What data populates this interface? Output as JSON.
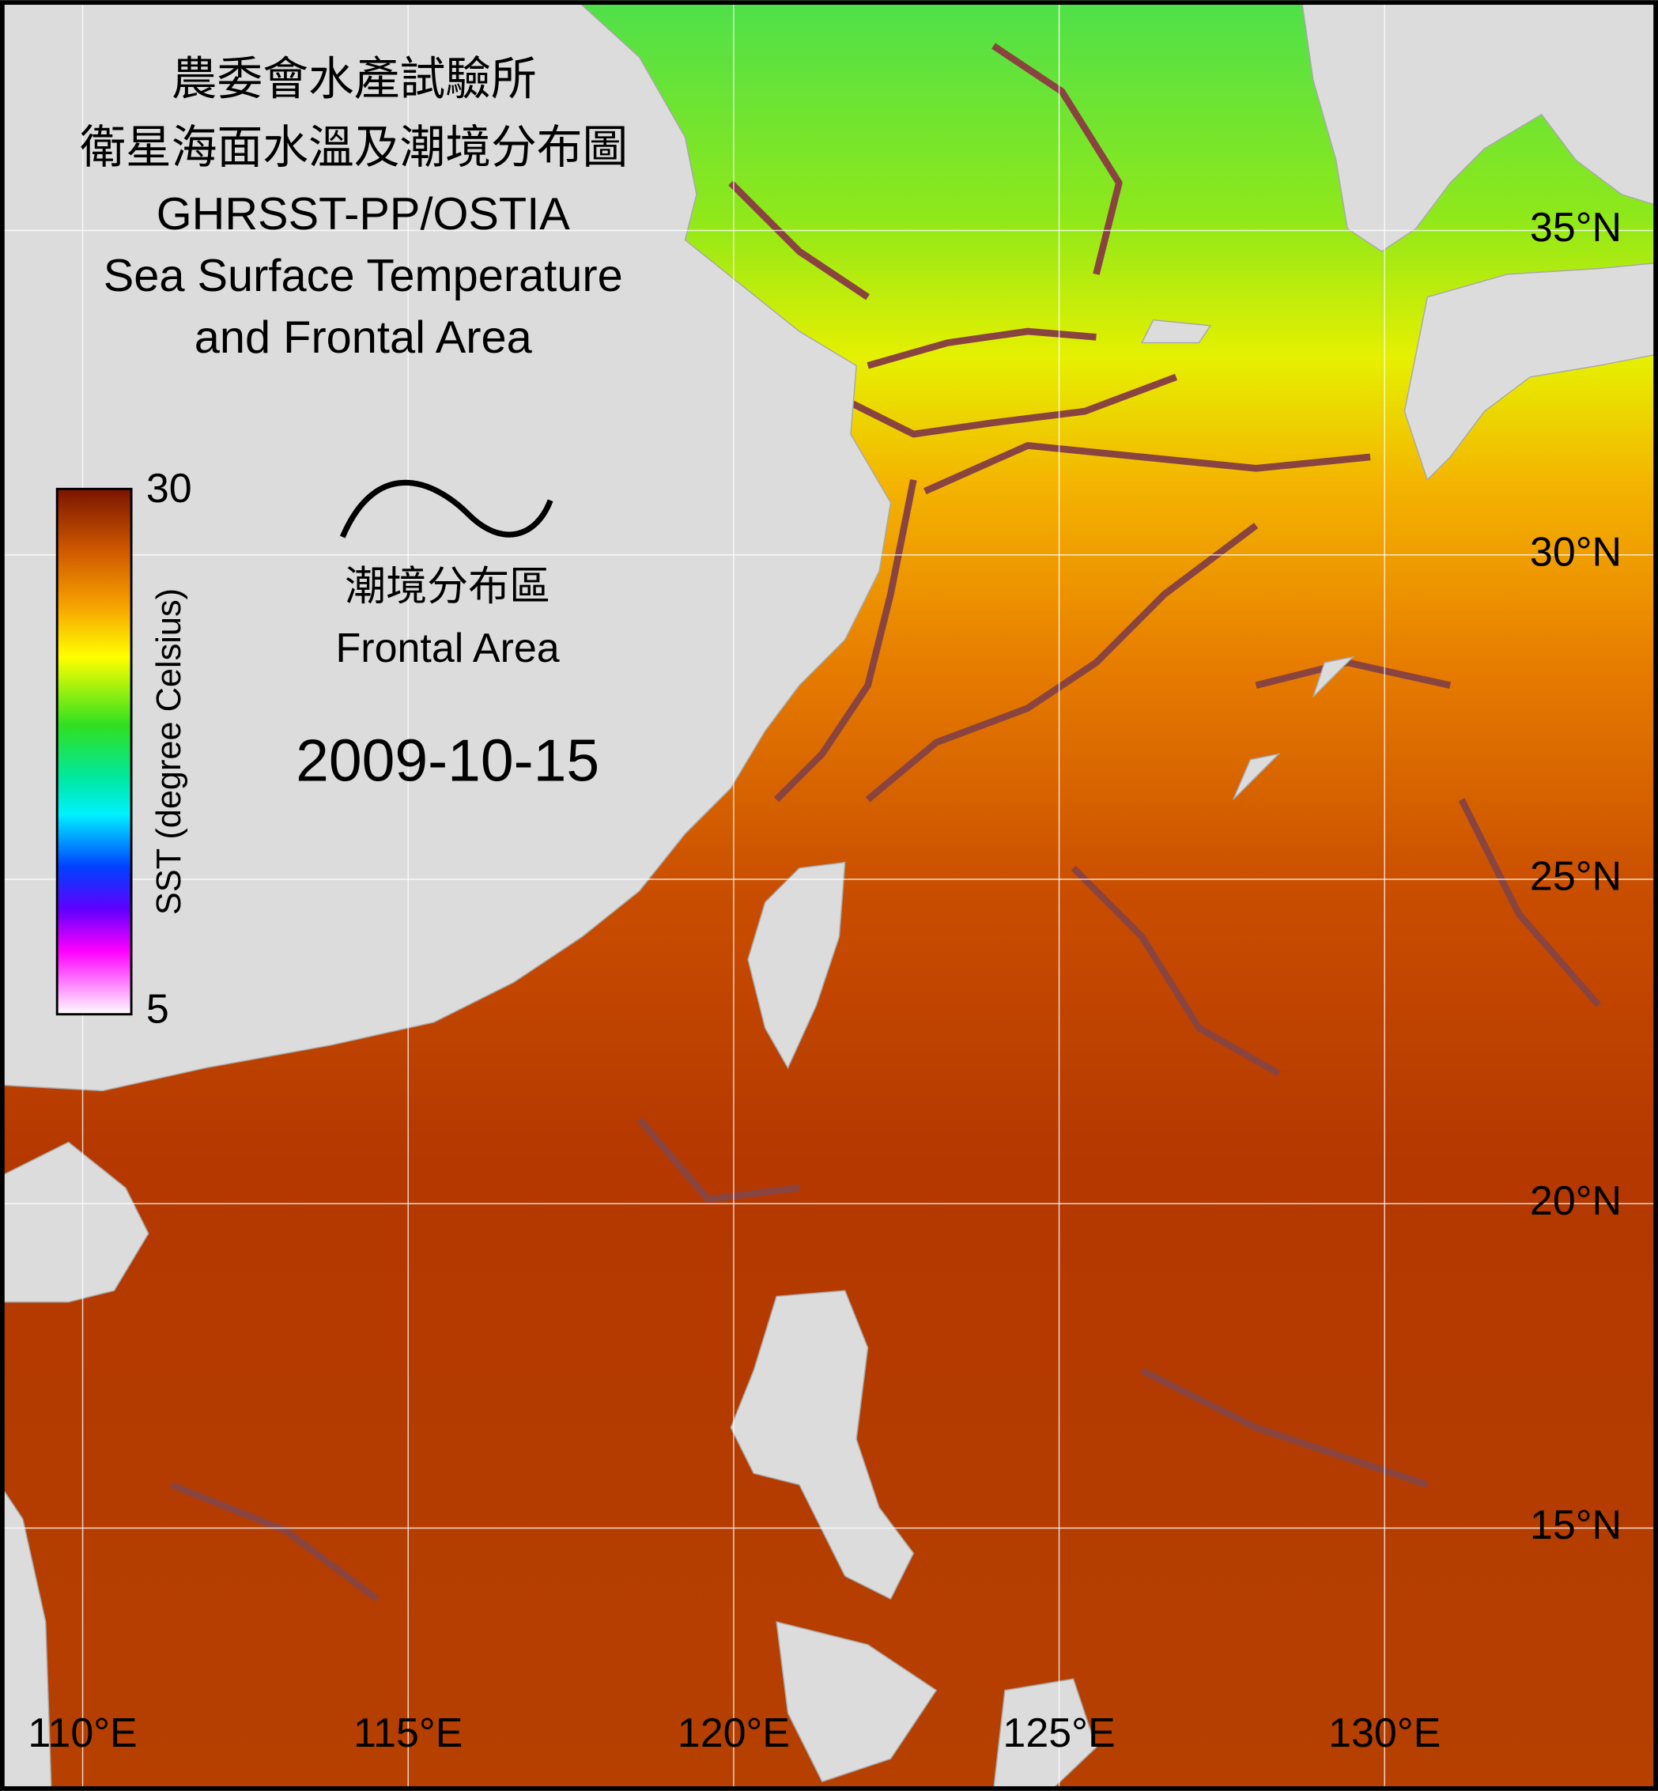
{
  "title": [
    "農委會水產試驗所",
    "衛星海面水溫及潮境分布圖",
    "GHRSST-PP/OSTIA",
    "Sea Surface Temperature",
    "and Frontal Area"
  ],
  "legend": {
    "label_zh": "潮境分布區",
    "label_en": "Frontal Area"
  },
  "date": "2009-10-15",
  "colorbar": {
    "label": "SST (degree Celsius)",
    "min": 5,
    "max": 30
  },
  "map": {
    "xlim": [
      108.73,
      134.2
    ],
    "ylim": [
      10.95,
      38.55
    ],
    "xticks": [
      {
        "value": 110,
        "label": "110°E"
      },
      {
        "value": 115,
        "label": "115°E"
      },
      {
        "value": 120,
        "label": "120°E"
      },
      {
        "value": 125,
        "label": "125°E"
      },
      {
        "value": 130,
        "label": "130°E"
      }
    ],
    "yticks": [
      {
        "value": 15,
        "label": "15°N"
      },
      {
        "value": 20,
        "label": "20°N"
      },
      {
        "value": 25,
        "label": "25°N"
      },
      {
        "value": 30,
        "label": "30°N"
      },
      {
        "value": 35,
        "label": "35°N"
      }
    ]
  }
}
